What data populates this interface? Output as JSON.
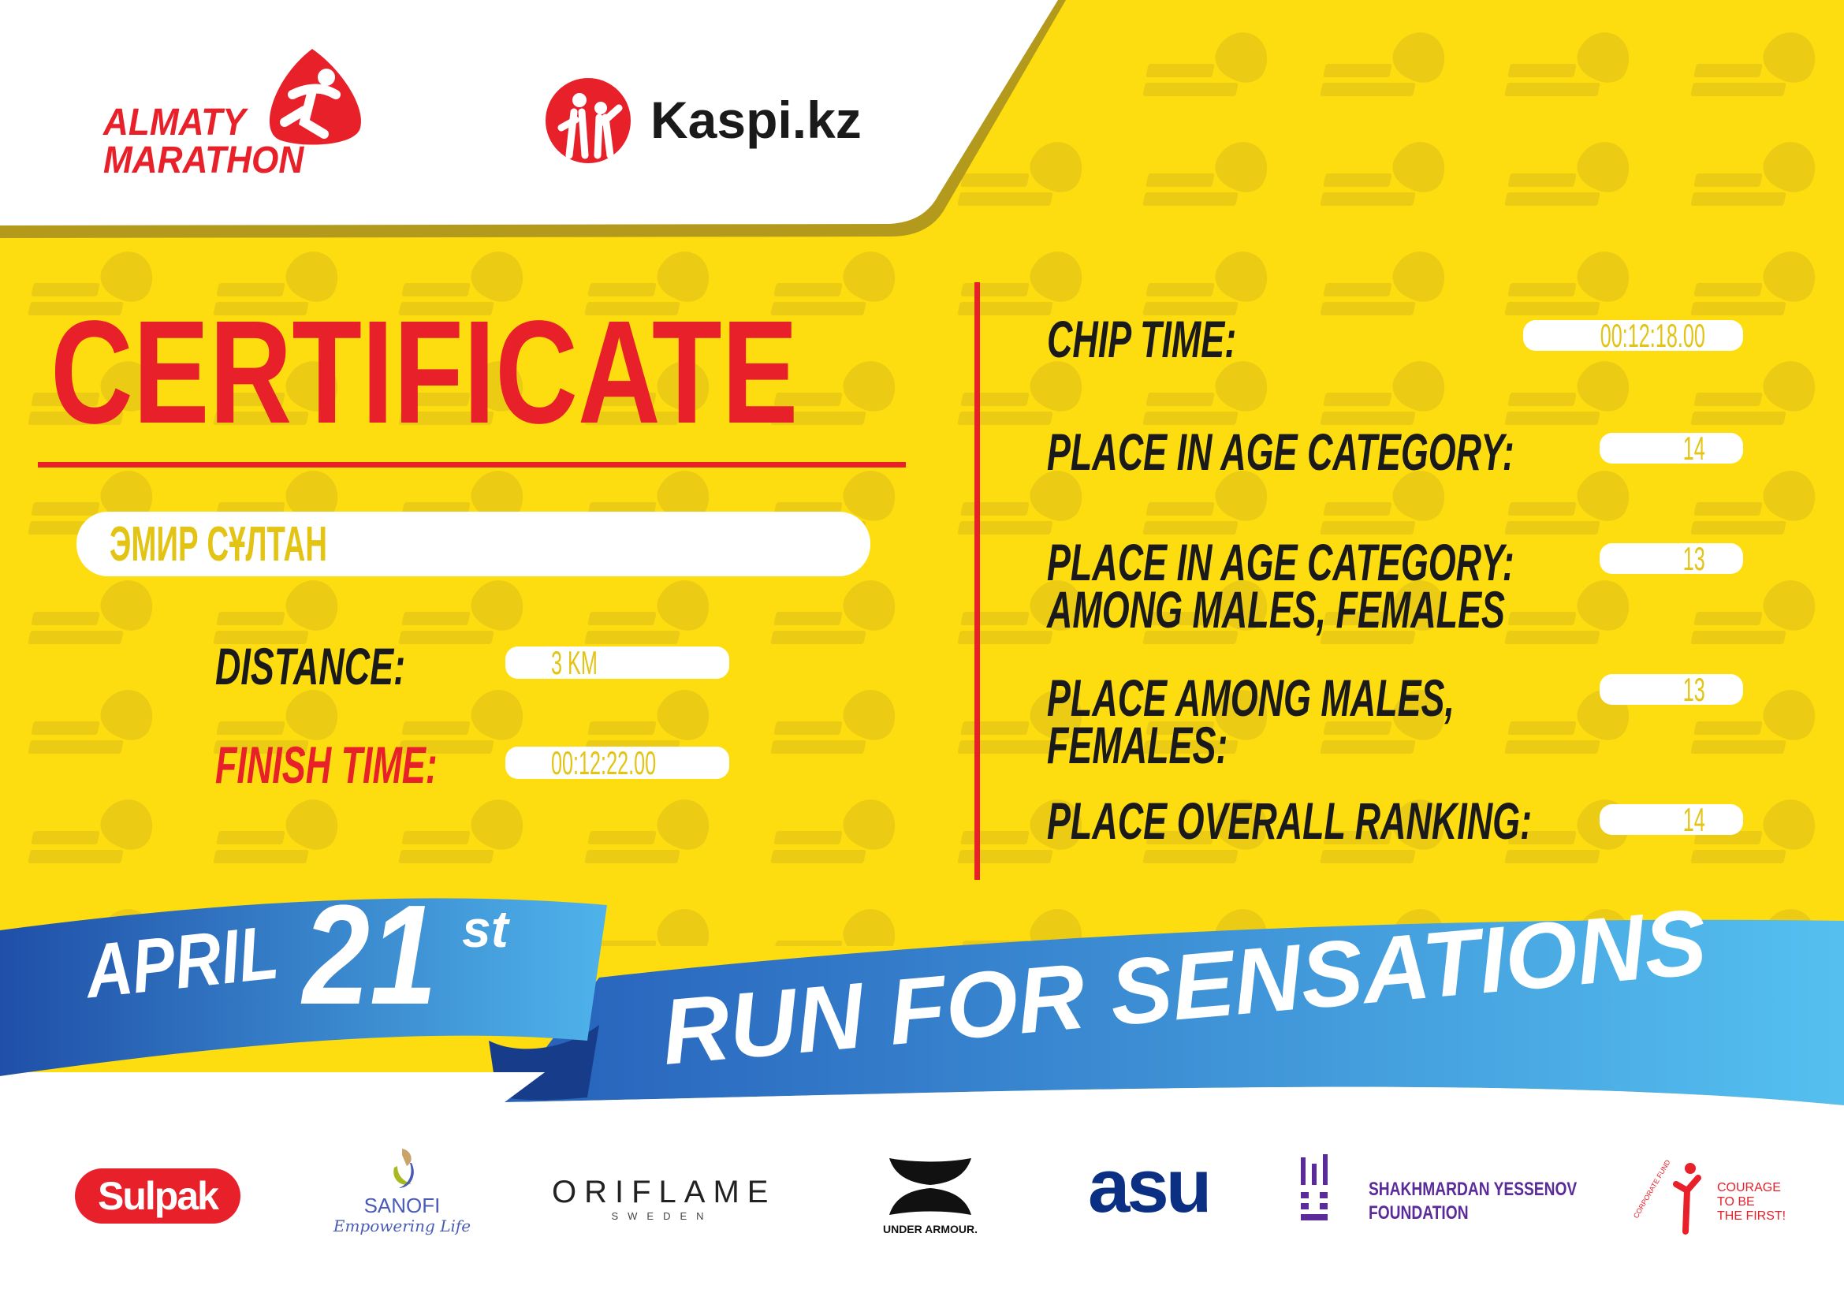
{
  "watermark": {
    "line1": "ALMATY",
    "line2": "MARATHON"
  },
  "header": {
    "event_logo": {
      "line1": "ALMATY",
      "line2": "MARATHON"
    },
    "sponsor_logo": "Kaspi.kz"
  },
  "certificate": {
    "title": "CERTIFICATE",
    "participant_name": "ЭМИР СҰЛТАН",
    "distance_label": "DISTANCE:",
    "distance_value": "3 KM",
    "finish_time_label": "FINISH TIME:",
    "finish_time_value": "00:12:22.00"
  },
  "results": [
    {
      "label_lines": [
        "CHIP TIME:"
      ],
      "value": "00:12:18.00"
    },
    {
      "label_lines": [
        "PLACE IN AGE CATEGORY:"
      ],
      "value": "14"
    },
    {
      "label_lines": [
        "PLACE IN AGE CATEGORY:",
        "AMONG MALES, FEMALES"
      ],
      "value": "13"
    },
    {
      "label_lines": [
        "PLACE AMONG MALES,",
        "FEMALES:"
      ],
      "value": "13"
    },
    {
      "label_lines": [
        "PLACE OVERALL RANKING:"
      ],
      "value": "14"
    }
  ],
  "ribbon": {
    "month": "APRIL",
    "day": "21",
    "suffix": "st",
    "slogan": "RUN FOR SENSATIONS"
  },
  "partners": {
    "sulpak": "Sulpak",
    "sanofi": "SANOFI",
    "sanofi_tagline": "Empowering Life",
    "oriflame": "ORIFLAME",
    "oriflame_sub": "SWEDEN",
    "under_armour": "UNDER ARMOUR.",
    "asu": "asu",
    "yessenov_line1": "SHAKHMARDAN YESSENOV",
    "yessenov_line2": "FOUNDATION",
    "courage_arc": "CORPORATE FUND",
    "courage_line1": "COURAGE",
    "courage_line2": "TO BE",
    "courage_line3": "THE FIRST!"
  },
  "colors": {
    "background": "#FDDD10",
    "accent_red": "#E8202A",
    "ribbon_blue": "#2A6CC4",
    "ribbon_light": "#55BDEF",
    "value_text": "#E3C313"
  }
}
